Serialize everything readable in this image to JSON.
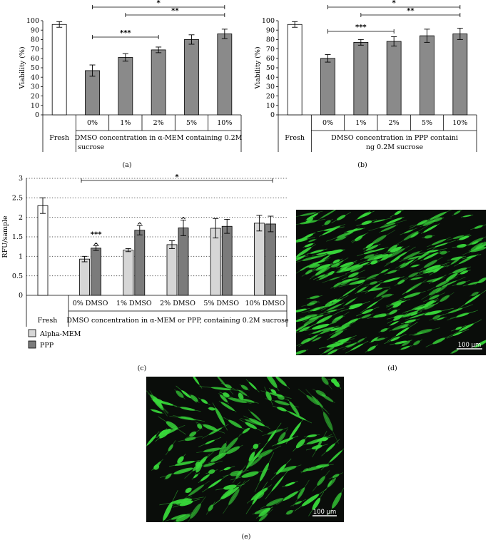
{
  "chart_data": [
    {
      "id": "a",
      "type": "bar",
      "panel_label": "(a)",
      "ylabel": "Viability (%)",
      "ylim": [
        0,
        100
      ],
      "yticks": [
        0,
        10,
        20,
        30,
        40,
        50,
        60,
        70,
        80,
        90,
        100
      ],
      "categories": [
        "Fresh",
        "0%",
        "1%",
        "2%",
        "5%",
        "10%"
      ],
      "values": [
        96,
        47,
        61,
        69,
        80,
        86
      ],
      "errors": [
        3,
        6,
        4,
        3,
        5,
        5
      ],
      "group_fresh_label": "Fresh",
      "group_label": "DMSO concentration in α-MEM containing 0.2M sucrose",
      "significance": [
        {
          "from": 1,
          "to": 5,
          "label": "*"
        },
        {
          "from": 2,
          "to": 5,
          "label": "**"
        },
        {
          "from": 1,
          "to": 3,
          "label": "***"
        }
      ]
    },
    {
      "id": "b",
      "type": "bar",
      "panel_label": "(b)",
      "ylabel": "Viability (%)",
      "ylim": [
        0,
        100
      ],
      "yticks": [
        0,
        10,
        20,
        30,
        40,
        50,
        60,
        70,
        80,
        90,
        100
      ],
      "categories": [
        "Fresh",
        "0%",
        "1%",
        "2%",
        "5%",
        "10%"
      ],
      "values": [
        96,
        60,
        77,
        78,
        84,
        86
      ],
      "errors": [
        3,
        4,
        3,
        5,
        7,
        6
      ],
      "group_fresh_label": "Fresh",
      "group_label": "DMSO concentration in PPP containing 0.2M sucrose",
      "significance": [
        {
          "from": 1,
          "to": 5,
          "label": "*"
        },
        {
          "from": 2,
          "to": 5,
          "label": "**"
        },
        {
          "from": 1,
          "to": 3,
          "label": "***"
        }
      ]
    },
    {
      "id": "c",
      "type": "bar",
      "panel_label": "(c)",
      "ylabel": "RFU/sample",
      "ylim": [
        0,
        3
      ],
      "yticks": [
        0,
        0.5,
        1,
        1.5,
        2,
        2.5,
        3
      ],
      "grid": true,
      "fresh": {
        "label": "Fresh",
        "value": 2.3,
        "error": 0.2
      },
      "categories": [
        "0% DMSO",
        "1% DMSO",
        "2% DMSO",
        "5% DMSO",
        "10% DMSO"
      ],
      "series": [
        {
          "name": "Alpha-MEM",
          "color": "#d6d6d6",
          "values": [
            0.93,
            1.16,
            1.3,
            1.72,
            1.85
          ],
          "errors": [
            0.07,
            0.04,
            0.1,
            0.25,
            0.2
          ]
        },
        {
          "name": "PPP",
          "color": "#7b7b7b",
          "values": [
            1.21,
            1.67,
            1.73,
            1.77,
            1.83
          ],
          "errors": [
            0.06,
            0.12,
            0.2,
            0.18,
            0.2
          ]
        }
      ],
      "group_label": "DMSO concentration in α-MEM or PPP, containing 0.2M sucrose",
      "significance": [
        {
          "label": "*"
        }
      ],
      "annotations": [
        {
          "category": 0,
          "text": "***"
        },
        {
          "category": 0,
          "text": "^"
        },
        {
          "category": 1,
          "text": "^"
        },
        {
          "category": 2,
          "text": "^"
        }
      ],
      "legend_position": "bottom-left"
    }
  ],
  "images": [
    {
      "id": "d",
      "panel_label": "(d)",
      "scale_bar": "100 μm",
      "color": "#38d83a"
    },
    {
      "id": "e",
      "panel_label": "(e)",
      "scale_bar": "100 μm",
      "color": "#38d83a"
    }
  ]
}
